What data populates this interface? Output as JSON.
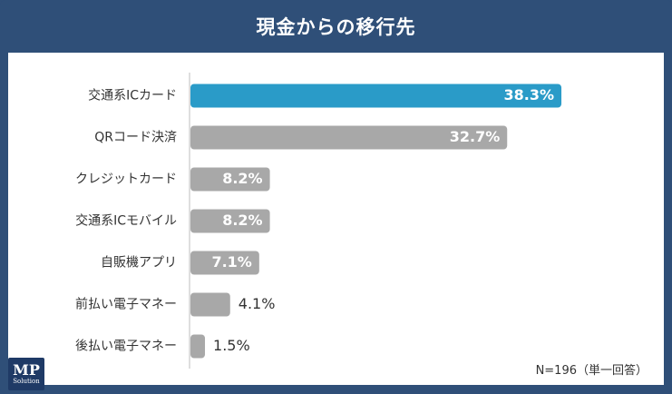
{
  "header": {
    "title": "現金からの移行先"
  },
  "footnote": "N=196（単一回答）",
  "logo": {
    "mark": "MP",
    "sub": "Solution"
  },
  "colors": {
    "highlight": "#2a9bc8",
    "default": "#a8a8a8",
    "frame": "#2f4f78"
  },
  "chart_data": {
    "type": "bar",
    "orientation": "horizontal",
    "title": "現金からの移行先",
    "categories": [
      "交通系ICカード",
      "QRコード決済",
      "クレジットカード",
      "交通系ICモバイル",
      "自販機アプリ",
      "前払い電子マネー",
      "後払い電子マネー"
    ],
    "values": [
      38.3,
      32.7,
      8.2,
      8.2,
      7.1,
      4.1,
      1.5
    ],
    "labels": [
      "38.3%",
      "32.7%",
      "8.2%",
      "8.2%",
      "7.1%",
      "4.1%",
      "1.5%"
    ],
    "highlight_index": 0,
    "xlim": [
      0,
      50
    ],
    "grid": false,
    "legend": "none"
  }
}
